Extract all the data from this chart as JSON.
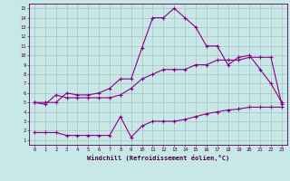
{
  "xlabel": "Windchill (Refroidissement éolien,°C)",
  "bg_color": "#c8e8e8",
  "line_color": "#880088",
  "grid_color": "#a0b8b8",
  "xlim": [
    -0.5,
    23.5
  ],
  "ylim": [
    0.5,
    15.5
  ],
  "xticks": [
    0,
    1,
    2,
    3,
    4,
    5,
    6,
    7,
    8,
    9,
    10,
    11,
    12,
    13,
    14,
    15,
    16,
    17,
    18,
    19,
    20,
    21,
    22,
    23
  ],
  "yticks": [
    1,
    2,
    3,
    4,
    5,
    6,
    7,
    8,
    9,
    10,
    11,
    12,
    13,
    14,
    15
  ],
  "line1_x": [
    0,
    1,
    2,
    3,
    4,
    5,
    6,
    7,
    8,
    9,
    10,
    11,
    12,
    13,
    14,
    15,
    16,
    17,
    18,
    19,
    20,
    21,
    22,
    23
  ],
  "line1_y": [
    5.0,
    4.8,
    5.8,
    5.5,
    5.5,
    5.5,
    5.5,
    5.5,
    5.8,
    6.5,
    7.5,
    8.0,
    8.5,
    8.5,
    8.5,
    9.0,
    9.0,
    9.5,
    9.5,
    9.5,
    9.8,
    9.8,
    9.8,
    4.8
  ],
  "line2_x": [
    0,
    1,
    2,
    3,
    4,
    5,
    6,
    7,
    8,
    9,
    10,
    11,
    12,
    13,
    14,
    15,
    16,
    17,
    18,
    19,
    20,
    21,
    22,
    23
  ],
  "line2_y": [
    5.0,
    5.0,
    5.0,
    6.0,
    5.8,
    5.8,
    6.0,
    6.5,
    7.5,
    7.5,
    10.8,
    14.0,
    14.0,
    15.0,
    14.0,
    13.0,
    11.0,
    11.0,
    9.0,
    9.8,
    10.0,
    8.5,
    7.0,
    5.0
  ],
  "line3_x": [
    0,
    1,
    2,
    3,
    4,
    5,
    6,
    7,
    8,
    9,
    10,
    11,
    12,
    13,
    14,
    15,
    16,
    17,
    18,
    19,
    20,
    21,
    22,
    23
  ],
  "line3_y": [
    1.8,
    1.8,
    1.8,
    1.5,
    1.5,
    1.5,
    1.5,
    1.5,
    3.5,
    1.3,
    2.5,
    3.0,
    3.0,
    3.0,
    3.2,
    3.5,
    3.8,
    4.0,
    4.2,
    4.3,
    4.5,
    4.5,
    4.5,
    4.5
  ]
}
